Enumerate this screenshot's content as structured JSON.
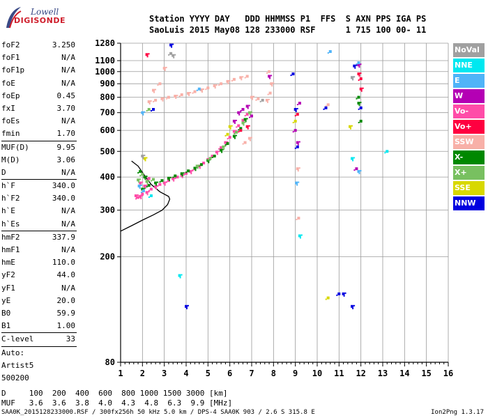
{
  "logo": {
    "line1": "Lowell",
    "line2": "DIGISONDE"
  },
  "header": {
    "line1": "Station YYYY DAY   DDD HHMMSS P1  FFS  S AXN PPS IGA PS",
    "line2": "SaoLuis 2015 May08 128 233000 RSF      1 715 100 00- 11"
  },
  "params": [
    {
      "label": "foF2",
      "value": "3.250"
    },
    {
      "label": "foF1",
      "value": "N/A"
    },
    {
      "label": "foF1p",
      "value": "N/A"
    },
    {
      "label": "foE",
      "value": "N/A"
    },
    {
      "label": "foEp",
      "value": "0.45"
    },
    {
      "label": "fxI",
      "value": "3.70"
    },
    {
      "label": "foEs",
      "value": "N/A"
    },
    {
      "label": "fmin",
      "value": "1.70"
    },
    {
      "label": "MUF(D)",
      "value": "9.95",
      "sep": true
    },
    {
      "label": "M(D)",
      "value": "3.06"
    },
    {
      "label": "D",
      "value": "N/A"
    },
    {
      "label": "h`F",
      "value": "340.0",
      "sep": true
    },
    {
      "label": "h`F2",
      "value": "340.0"
    },
    {
      "label": "h`E",
      "value": "N/A"
    },
    {
      "label": "h`Es",
      "value": "N/A"
    },
    {
      "label": "hmF2",
      "value": "337.9",
      "sep": true
    },
    {
      "label": "hmF1",
      "value": "N/A"
    },
    {
      "label": "hmE",
      "value": "110.0"
    },
    {
      "label": "yF2",
      "value": "44.0"
    },
    {
      "label": "yF1",
      "value": "N/A"
    },
    {
      "label": "yE",
      "value": "20.0"
    },
    {
      "label": "B0",
      "value": "59.9"
    },
    {
      "label": "B1",
      "value": "1.00"
    },
    {
      "label": "C-level",
      "value": "33",
      "sep": true
    },
    {
      "label": "Auto:",
      "value": "",
      "sep": true
    },
    {
      "label": "Artist5",
      "value": ""
    },
    {
      "label": "500200",
      "value": ""
    }
  ],
  "bottom": {
    "line1": "D     100  200  400  600  800 1000 1500 3000 [km]",
    "line2": "MUF   3.6  3.6  3.8  4.0  4.3  4.8  6.3  9.9 [MHz]"
  },
  "footer": {
    "left": "SAA0K_2015128233000.RSF / 300fx256h 50 kHz 5.0 km / DPS-4 SAA0K 903 / 2.6 S 315.8 E",
    "right": "Ion2Png 1.3.17"
  },
  "legend": [
    {
      "label": "NoVal",
      "color": "#a0a0a0"
    },
    {
      "label": "NNE",
      "color": "#00e8f0"
    },
    {
      "label": "E",
      "color": "#50b4f8"
    },
    {
      "label": "W",
      "color": "#b400b4"
    },
    {
      "label": "Vo-",
      "color": "#ff4ca8"
    },
    {
      "label": "Vo+",
      "color": "#ff0040"
    },
    {
      "label": "SSW",
      "color": "#f8b0a8"
    },
    {
      "label": "X-",
      "color": "#008800"
    },
    {
      "label": "X+",
      "color": "#78c060"
    },
    {
      "label": "SSE",
      "color": "#d8d800"
    },
    {
      "label": "NNW",
      "color": "#0000e0"
    }
  ],
  "chart_data": {
    "type": "scatter",
    "title": "",
    "xlabel": "",
    "ylabel": "",
    "xlim": [
      1,
      16
    ],
    "ylim": [
      80,
      1280
    ],
    "x_ticks": [
      1,
      2,
      3,
      4,
      5,
      6,
      7,
      8,
      9,
      10,
      11,
      12,
      13,
      14,
      15,
      16
    ],
    "y_ticks": [
      80,
      200,
      300,
      400,
      500,
      600,
      700,
      800,
      900,
      1000,
      1100,
      1280
    ],
    "y_scale": "log",
    "grid": true,
    "profile_curve": [
      [
        1.0,
        250
      ],
      [
        1.5,
        262
      ],
      [
        2.0,
        275
      ],
      [
        2.5,
        288
      ],
      [
        2.9,
        300
      ],
      [
        3.15,
        315
      ],
      [
        3.25,
        330
      ],
      [
        3.2,
        338
      ],
      [
        2.8,
        352
      ],
      [
        2.4,
        375
      ],
      [
        2.1,
        405
      ],
      [
        1.8,
        440
      ],
      [
        1.5,
        460
      ]
    ],
    "series": [
      {
        "name": "Vo-",
        "color": "#ff4ca8",
        "points": [
          [
            1.7,
            340
          ],
          [
            1.8,
            335
          ],
          [
            1.9,
            338
          ],
          [
            2.0,
            345
          ],
          [
            2.2,
            350
          ],
          [
            2.4,
            360
          ],
          [
            2.6,
            368
          ],
          [
            2.8,
            375
          ],
          [
            3.0,
            380
          ],
          [
            3.2,
            388
          ],
          [
            3.4,
            394
          ],
          [
            3.6,
            400
          ],
          [
            3.8,
            406
          ],
          [
            4.0,
            413
          ],
          [
            4.2,
            420
          ],
          [
            4.4,
            430
          ],
          [
            4.6,
            440
          ],
          [
            4.8,
            452
          ],
          [
            5.0,
            466
          ],
          [
            5.2,
            480
          ],
          [
            5.4,
            497
          ],
          [
            5.6,
            517
          ],
          [
            5.8,
            540
          ],
          [
            6.0,
            565
          ],
          [
            6.2,
            595
          ],
          [
            6.4,
            625
          ],
          [
            6.6,
            655
          ],
          [
            6.8,
            690
          ],
          [
            1.9,
            380
          ],
          [
            2.3,
            395
          ],
          [
            2.1,
            370
          ]
        ]
      },
      {
        "name": "X-",
        "color": "#008800",
        "points": [
          [
            2.0,
            360
          ],
          [
            2.3,
            372
          ],
          [
            2.6,
            380
          ],
          [
            2.9,
            388
          ],
          [
            3.2,
            396
          ],
          [
            3.5,
            404
          ],
          [
            3.8,
            412
          ],
          [
            4.1,
            422
          ],
          [
            4.4,
            432
          ],
          [
            4.7,
            446
          ],
          [
            5.0,
            462
          ],
          [
            5.3,
            480
          ],
          [
            5.6,
            505
          ],
          [
            5.9,
            535
          ],
          [
            6.2,
            570
          ],
          [
            6.5,
            610
          ],
          [
            6.7,
            660
          ],
          [
            1.9,
            420
          ],
          [
            2.1,
            400
          ],
          [
            11.9,
            800
          ],
          [
            11.9,
            760
          ],
          [
            12.0,
            650
          ]
        ]
      },
      {
        "name": "X+",
        "color": "#78c060",
        "points": [
          [
            1.8,
            390
          ],
          [
            2.0,
            410
          ],
          [
            2.2,
            385
          ],
          [
            2.5,
            392
          ],
          [
            4.5,
            440
          ],
          [
            5.1,
            470
          ],
          [
            5.7,
            520
          ],
          [
            6.3,
            590
          ],
          [
            6.6,
            640
          ],
          [
            2.3,
            720
          ],
          [
            6.9,
            700
          ]
        ]
      },
      {
        "name": "SSW",
        "color": "#f8b0a8",
        "points": [
          [
            2.3,
            770
          ],
          [
            2.6,
            780
          ],
          [
            2.9,
            790
          ],
          [
            3.2,
            800
          ],
          [
            3.5,
            808
          ],
          [
            3.8,
            818
          ],
          [
            4.1,
            828
          ],
          [
            4.4,
            840
          ],
          [
            4.7,
            853
          ],
          [
            5.0,
            868
          ],
          [
            5.3,
            884
          ],
          [
            5.6,
            900
          ],
          [
            5.9,
            918
          ],
          [
            6.2,
            935
          ],
          [
            6.5,
            950
          ],
          [
            6.8,
            960
          ],
          [
            7.0,
            800
          ],
          [
            7.3,
            790
          ],
          [
            7.7,
            780
          ],
          [
            7.85,
            830
          ],
          [
            7.9,
            900
          ],
          [
            7.8,
            1000
          ],
          [
            6.9,
            560
          ],
          [
            6.7,
            540
          ],
          [
            9.1,
            430
          ],
          [
            9.15,
            280
          ],
          [
            3.0,
            1030
          ],
          [
            2.8,
            900
          ],
          [
            2.5,
            850
          ],
          [
            10.5,
            750
          ]
        ]
      },
      {
        "name": "W",
        "color": "#b400b4",
        "points": [
          [
            6.4,
            700
          ],
          [
            6.6,
            720
          ],
          [
            6.8,
            740
          ],
          [
            7.0,
            680
          ],
          [
            6.2,
            650
          ],
          [
            9.0,
            600
          ],
          [
            9.1,
            540
          ],
          [
            9.2,
            760
          ],
          [
            11.9,
            1060
          ],
          [
            11.8,
            430
          ],
          [
            7.8,
            960
          ]
        ]
      },
      {
        "name": "Vo+",
        "color": "#ff0040",
        "points": [
          [
            2.2,
            1160
          ],
          [
            9.1,
            690
          ],
          [
            12.0,
            860
          ],
          [
            12.0,
            940
          ],
          [
            11.9,
            980
          ],
          [
            6.5,
            600
          ],
          [
            6.8,
            620
          ]
        ]
      },
      {
        "name": "E",
        "color": "#50b4f8",
        "points": [
          [
            1.85,
            370
          ],
          [
            2.05,
            355
          ],
          [
            9.05,
            380
          ],
          [
            10.6,
            1190
          ],
          [
            11.6,
            950
          ],
          [
            11.9,
            1080
          ],
          [
            2.0,
            700
          ],
          [
            4.6,
            860
          ],
          [
            11.9,
            420
          ]
        ]
      },
      {
        "name": "NNE",
        "color": "#00e8f0",
        "points": [
          [
            3.7,
            170
          ],
          [
            13.2,
            500
          ],
          [
            11.6,
            470
          ],
          [
            2.4,
            340
          ],
          [
            9.2,
            240
          ]
        ]
      },
      {
        "name": "SSE",
        "color": "#d8d800",
        "points": [
          [
            11.5,
            620
          ],
          [
            10.5,
            140
          ],
          [
            6.0,
            620
          ],
          [
            5.9,
            580
          ],
          [
            2.1,
            470
          ],
          [
            9.0,
            650
          ]
        ]
      },
      {
        "name": "NNW",
        "color": "#0000e0",
        "points": [
          [
            3.3,
            1260
          ],
          [
            2.5,
            720
          ],
          [
            9.0,
            720
          ],
          [
            10.4,
            730
          ],
          [
            11.2,
            145
          ],
          [
            11.0,
            145
          ],
          [
            11.6,
            130
          ],
          [
            12.0,
            730
          ],
          [
            4.0,
            130
          ],
          [
            8.9,
            980
          ],
          [
            11.7,
            1050
          ],
          [
            9.1,
            520
          ]
        ]
      },
      {
        "name": "NoVal",
        "color": "#a0a0a0",
        "points": [
          [
            2.0,
            480
          ],
          [
            3.3,
            1170
          ],
          [
            3.4,
            1150
          ],
          [
            7.5,
            780
          ],
          [
            11.6,
            950
          ]
        ]
      }
    ]
  }
}
